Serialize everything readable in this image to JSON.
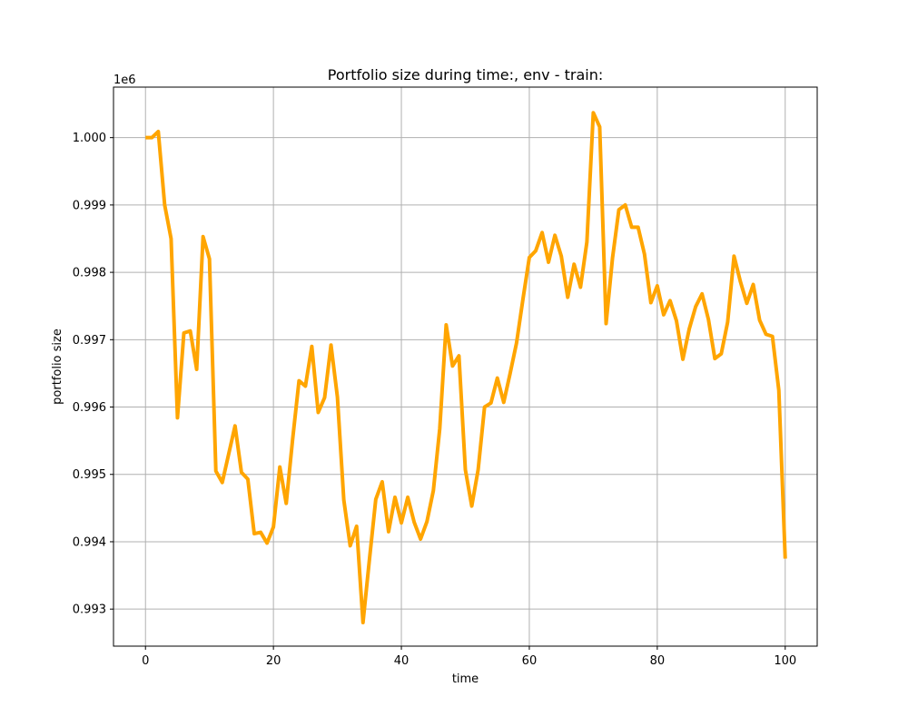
{
  "chart_data": {
    "type": "line",
    "title": "Portfolio size during time:, env - train:",
    "xlabel": "time",
    "ylabel": "portfolio size",
    "y_offset_label": "1e6",
    "xlim": [
      -5,
      105
    ],
    "ylim": [
      0.99245,
      1.00075
    ],
    "xticks": [
      0,
      20,
      40,
      60,
      80,
      100
    ],
    "xtick_labels": [
      "0",
      "20",
      "40",
      "60",
      "80",
      "100"
    ],
    "yticks": [
      0.993,
      0.994,
      0.995,
      0.996,
      0.997,
      0.998,
      0.999,
      1.0
    ],
    "ytick_labels": [
      "0.993",
      "0.994",
      "0.995",
      "0.996",
      "0.997",
      "0.998",
      "0.999",
      "1.000"
    ],
    "grid": true,
    "line_color": "#ffa500",
    "series": [
      {
        "x": [
          0,
          1,
          2,
          3,
          4,
          5,
          6,
          7,
          8,
          9,
          10,
          11,
          12,
          13,
          14,
          15,
          16,
          17,
          18,
          19,
          20,
          21,
          22,
          23,
          24,
          25,
          26,
          27,
          28,
          29,
          30,
          31,
          32,
          33,
          34,
          35,
          36,
          37,
          38,
          39,
          40,
          41,
          42,
          43,
          44,
          45,
          46,
          47,
          48,
          49,
          50,
          51,
          52,
          53,
          54,
          55,
          56,
          57,
          58,
          59,
          60,
          61,
          62,
          63,
          64,
          65,
          66,
          67,
          68,
          69,
          70,
          71,
          72,
          73,
          74,
          75,
          76,
          77,
          78,
          79,
          80,
          81,
          82,
          83,
          84,
          85,
          86,
          87,
          88,
          89,
          90,
          91,
          92,
          93,
          94,
          95,
          96,
          97,
          98,
          99,
          100
        ],
        "values": [
          1.0,
          1.0,
          1.00009,
          0.999,
          0.9985,
          0.99584,
          0.9971,
          0.99713,
          0.99656,
          0.99853,
          0.9982,
          0.99505,
          0.99488,
          0.9953,
          0.99572,
          0.99503,
          0.99493,
          0.99412,
          0.99414,
          0.99398,
          0.99422,
          0.99511,
          0.99457,
          0.99552,
          0.99639,
          0.99631,
          0.9969,
          0.99592,
          0.99614,
          0.99692,
          0.99615,
          0.99462,
          0.99394,
          0.99423,
          0.9928,
          0.99373,
          0.99463,
          0.99489,
          0.99415,
          0.99466,
          0.99428,
          0.99466,
          0.99429,
          0.99404,
          0.9943,
          0.99476,
          0.99568,
          0.99722,
          0.99661,
          0.99676,
          0.99507,
          0.99453,
          0.99507,
          0.996,
          0.99606,
          0.99643,
          0.99607,
          0.9965,
          0.99695,
          0.9976,
          0.99822,
          0.99832,
          0.99859,
          0.99815,
          0.99855,
          0.99824,
          0.99763,
          0.99812,
          0.99778,
          0.99845,
          1.00037,
          1.00016,
          0.99724,
          0.99821,
          0.99893,
          0.999,
          0.99867,
          0.99867,
          0.99827,
          0.99755,
          0.9978,
          0.99737,
          0.99758,
          0.99728,
          0.99671,
          0.99716,
          0.99749,
          0.99768,
          0.9973,
          0.99672,
          0.99679,
          0.99726,
          0.99824,
          0.99786,
          0.99754,
          0.99782,
          0.99729,
          0.99708,
          0.99705,
          0.99625,
          0.99375
        ]
      }
    ]
  }
}
